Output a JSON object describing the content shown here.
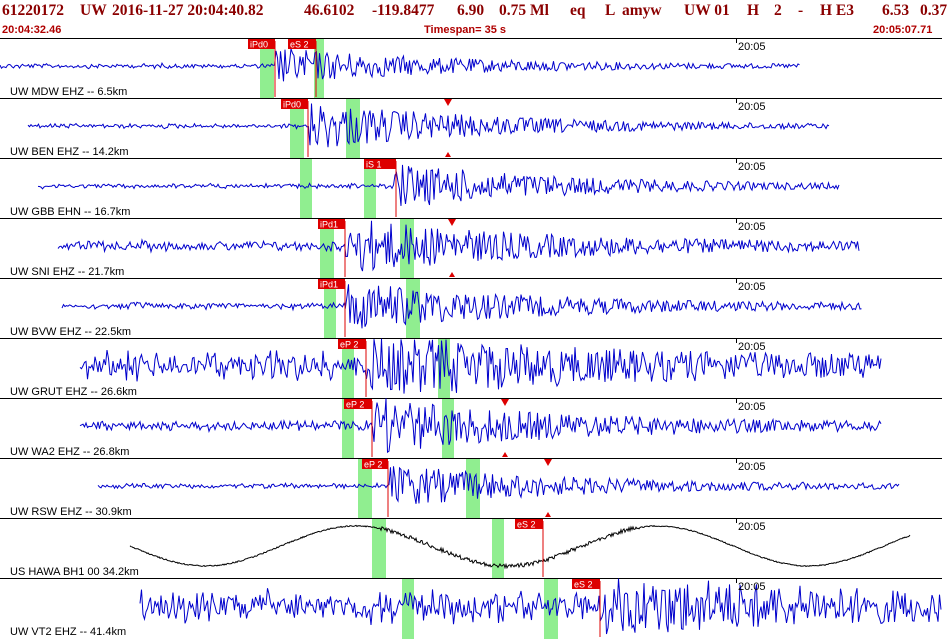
{
  "header": {
    "event_id": "61220172",
    "network": "UW",
    "datetime": "2016-11-27 20:04:40.82",
    "lat": "46.6102",
    "lon": "-119.8477",
    "depth": "6.90",
    "magnitude": "0.75 Ml",
    "etype": "eq",
    "flag": "L",
    "analyst": "amyw",
    "net2": "UW 01",
    "quality": "H",
    "n2": "2",
    "dash": "-",
    "h_e3": "H E3",
    "v1": "6.53",
    "v2": "0.37"
  },
  "subheader": {
    "start_time": "20:04:32.46",
    "timespan": "Timespan=  35 s",
    "end_time": "20:05:07.71"
  },
  "colors": {
    "trace": "#0000cc",
    "trace_black": "#000000",
    "pick": "#dd0000",
    "window": "#90ee90",
    "header": "#8b0000"
  },
  "traces": [
    {
      "station": "UW MDW EHZ -- 6.5km",
      "time_label": "20:05",
      "color": "trace",
      "picks": [
        "iPd0",
        "eS 2"
      ]
    },
    {
      "station": "UW BEN EHZ -- 14.2km",
      "time_label": "20:05",
      "color": "trace",
      "picks": [
        "iPd0",
        "▼"
      ]
    },
    {
      "station": "UW GBB EHN -- 16.7km",
      "time_label": "20:05",
      "color": "trace",
      "picks": [
        "iS 1"
      ]
    },
    {
      "station": "UW SNI EHZ -- 21.7km",
      "time_label": "20:05",
      "color": "trace",
      "picks": [
        "iPd1",
        "▼"
      ]
    },
    {
      "station": "UW BVW EHZ -- 22.5km",
      "time_label": "20:05",
      "color": "trace",
      "picks": [
        "iPd1"
      ]
    },
    {
      "station": "UW GRUT EHZ -- 26.6km",
      "time_label": "20:05",
      "color": "trace",
      "picks": [
        "eP 2"
      ]
    },
    {
      "station": "UW WA2 EHZ -- 26.8km",
      "time_label": "20:05",
      "color": "trace",
      "picks": [
        "eP 2",
        "▼"
      ]
    },
    {
      "station": "UW RSW EHZ -- 30.9km",
      "time_label": "20:05",
      "color": "trace",
      "picks": [
        "eP 2",
        "▼"
      ]
    },
    {
      "station": "US HAWA BH1 00 34.2km",
      "time_label": "20:05",
      "color": "trace_black",
      "picks": [
        "eS 2"
      ]
    },
    {
      "station": "UW VT2 EHZ -- 41.4km",
      "time_label": "20:05",
      "color": "trace",
      "picks": [
        "eS 2"
      ]
    }
  ]
}
